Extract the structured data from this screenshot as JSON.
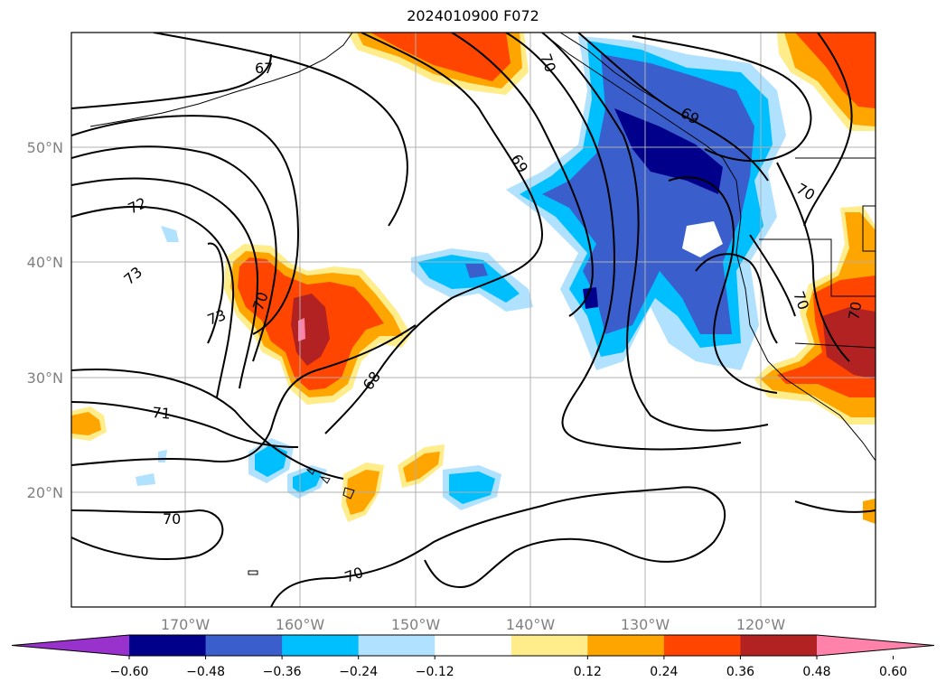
{
  "title": "2024010900 F072",
  "map": {
    "lat_labels": [
      "50°N",
      "40°N",
      "30°N",
      "20°N"
    ],
    "lon_labels": [
      "170°W",
      "160°W",
      "150°W",
      "140°W",
      "130°W",
      "120°W"
    ],
    "grid": true,
    "contour_labels": [
      "67",
      "69",
      "69",
      "70",
      "72",
      "73",
      "73",
      "70",
      "70",
      "68",
      "71",
      "70",
      "70",
      "70"
    ]
  },
  "colorbar": {
    "ticks": [
      "−0.60",
      "−0.48",
      "−0.36",
      "−0.24",
      "−0.12",
      "0.12",
      "0.24",
      "0.36",
      "0.48",
      "0.60"
    ],
    "colors": [
      "#9932cc",
      "#00008b",
      "#3a5fcd",
      "#00bfff",
      "#b0e2ff",
      "#ffffff",
      "#ffec8b",
      "#ffa500",
      "#ff4500",
      "#b22222",
      "#ff82ab"
    ]
  }
}
